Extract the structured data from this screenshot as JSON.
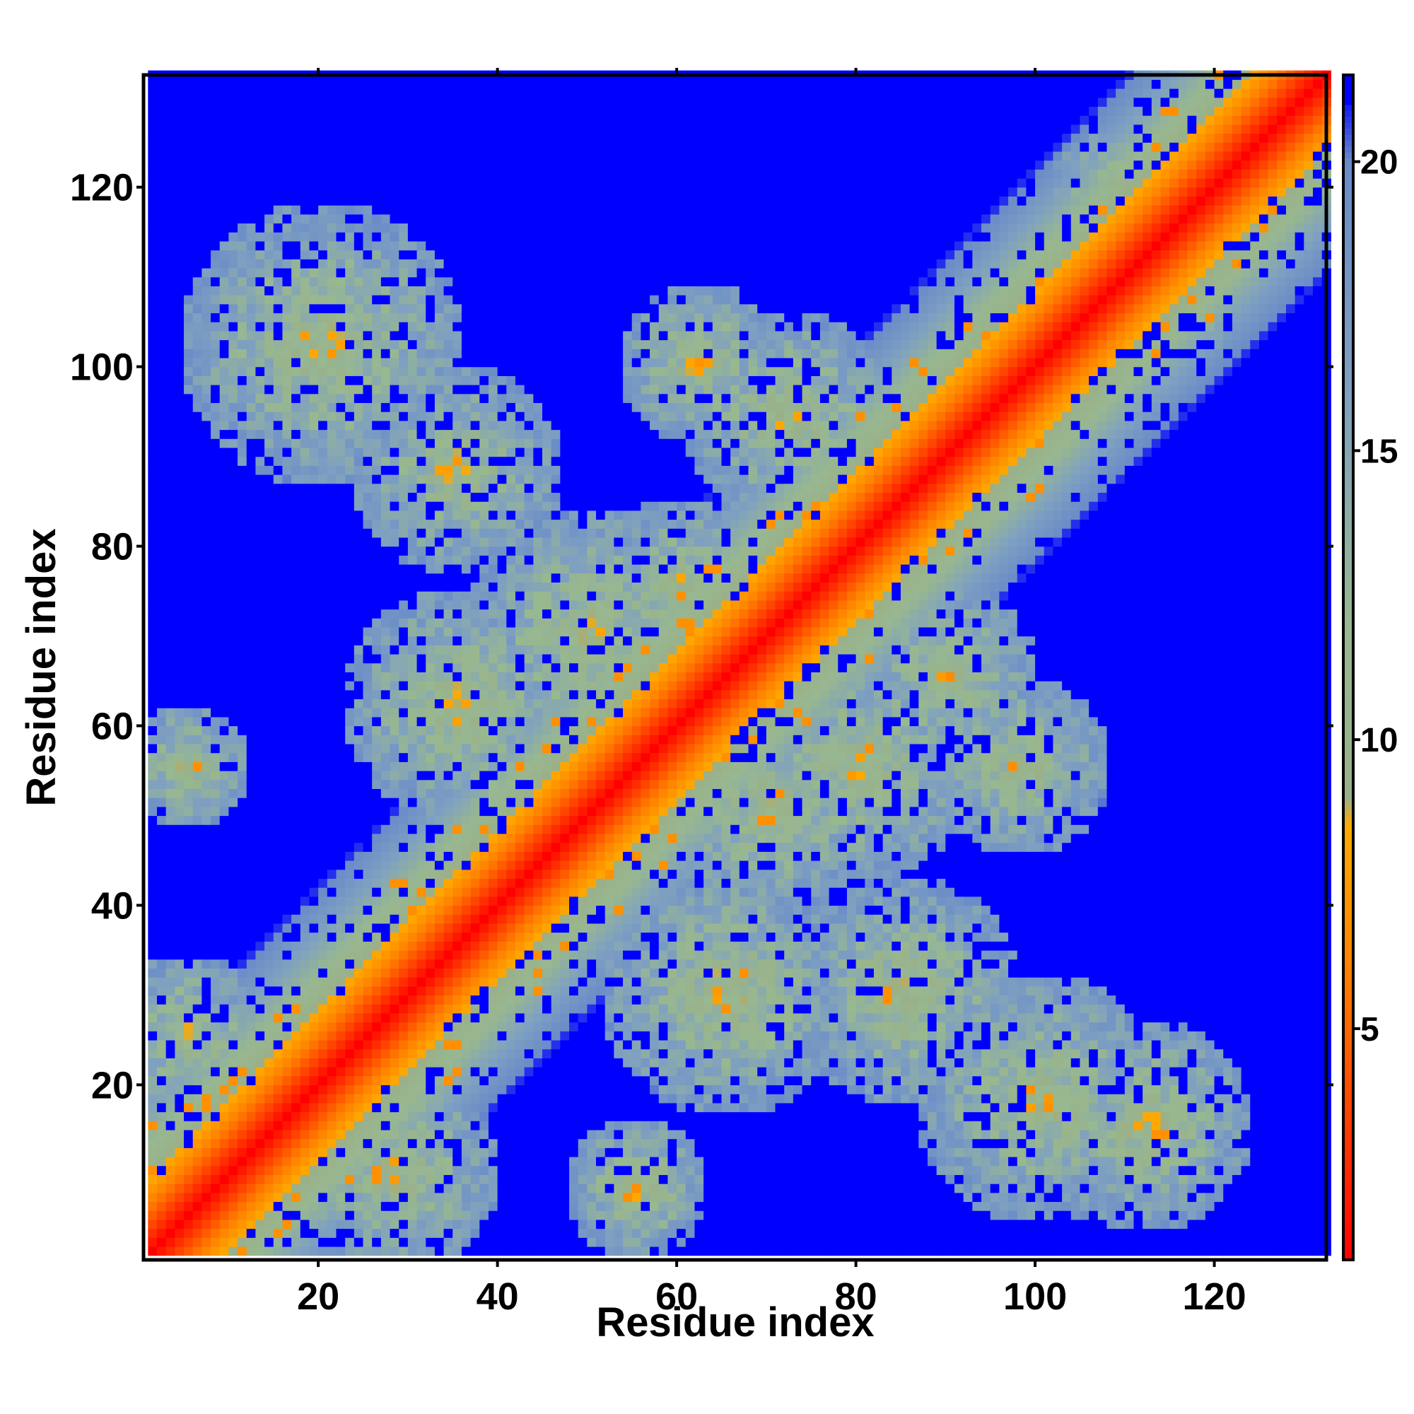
{
  "chart_data": {
    "type": "heatmap",
    "title": "",
    "xlabel": "Residue index",
    "ylabel": "Residue index",
    "xlim": [
      1,
      132
    ],
    "ylim": [
      1,
      132
    ],
    "n_residues": 132,
    "x_ticks": [
      20,
      40,
      60,
      80,
      100,
      120
    ],
    "y_ticks": [
      20,
      40,
      60,
      80,
      100,
      120
    ],
    "colorbar": {
      "ticks": [
        5,
        10,
        15,
        20
      ],
      "range": [
        1,
        21.5
      ],
      "stops": [
        {
          "value": 1,
          "color": "#ff0000"
        },
        {
          "value": 6,
          "color": "#ff8000"
        },
        {
          "value": 8.5,
          "color": "#ffaa00"
        },
        {
          "value": 9,
          "color": "#9ab08a"
        },
        {
          "value": 12,
          "color": "#98b890"
        },
        {
          "value": 16,
          "color": "#7fa0c0"
        },
        {
          "value": 20,
          "color": "#6a8cc8"
        },
        {
          "value": 21.2,
          "color": "#0000ff"
        }
      ]
    },
    "background_color": "#0000ff",
    "description_values": {
      "diagonal_distance": 1,
      "saturation_value": 21.5
    }
  }
}
